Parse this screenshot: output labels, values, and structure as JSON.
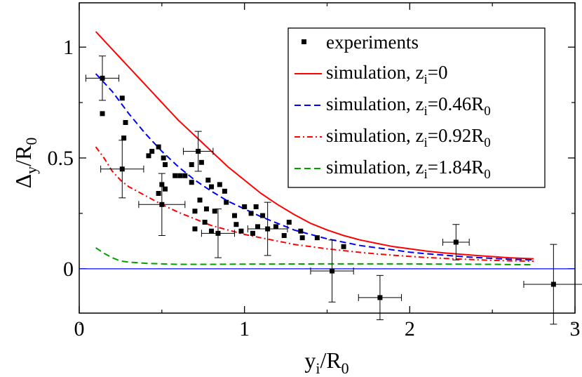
{
  "chart_data": {
    "type": "scatter",
    "title": "",
    "xlabel": {
      "main": "y",
      "sub1": "i",
      "sep": "/R",
      "sub2": "0"
    },
    "ylabel": {
      "main": "Δ",
      "sub1": "y",
      "sep": "/R",
      "sub2": "0"
    },
    "xlim": [
      0,
      3
    ],
    "ylim": [
      -0.2,
      1.2
    ],
    "xticks": [
      {
        "value": 0,
        "label": "0"
      },
      {
        "value": 1,
        "label": "1"
      },
      {
        "value": 2,
        "label": "2"
      },
      {
        "value": 3,
        "label": "3"
      }
    ],
    "yticks": [
      {
        "value": 0,
        "label": "0"
      },
      {
        "value": 0.5,
        "label": "0.5"
      },
      {
        "value": 1,
        "label": "1"
      }
    ],
    "xminor": [
      0.5,
      1.5,
      2.5
    ],
    "yminor": [
      -0.25,
      0.25,
      0.75
    ],
    "baseline": {
      "y": 0,
      "color": "#0000ff"
    },
    "legend_position": "top-right",
    "legend": [
      {
        "id": "exp",
        "marker": "square",
        "color": "#000000",
        "text": "experiments",
        "sub": "",
        "tail": "",
        "tail_sub": ""
      },
      {
        "id": "s0",
        "line": "solid",
        "color": "#ff0000",
        "text": "simulation, z",
        "sub": "i",
        "tail": "=0",
        "tail_sub": ""
      },
      {
        "id": "s1",
        "line": "dashed",
        "color": "#0000ff",
        "text": "simulation, z",
        "sub": "i",
        "tail": "=0.46R",
        "tail_sub": "0"
      },
      {
        "id": "s2",
        "line": "dashdot",
        "color": "#ff0000",
        "text": "simulation, z",
        "sub": "i",
        "tail": "=0.92R",
        "tail_sub": "0"
      },
      {
        "id": "s3",
        "line": "dashed",
        "color": "#00a000",
        "text": "simulation, z",
        "sub": "i",
        "tail": "=1.84R",
        "tail_sub": "0"
      }
    ],
    "series": [
      {
        "name": "simulation, z_i=0",
        "style": "solid",
        "color": "#ff0000",
        "x": [
          0.1,
          0.2,
          0.3,
          0.4,
          0.5,
          0.6,
          0.7,
          0.8,
          0.9,
          1.0,
          1.1,
          1.2,
          1.3,
          1.4,
          1.5,
          1.6,
          1.7,
          1.8,
          1.9,
          2.0,
          2.1,
          2.2,
          2.3,
          2.4,
          2.5,
          2.6,
          2.75
        ],
        "y": [
          1.07,
          0.99,
          0.91,
          0.83,
          0.75,
          0.67,
          0.6,
          0.53,
          0.46,
          0.4,
          0.34,
          0.29,
          0.245,
          0.205,
          0.175,
          0.15,
          0.13,
          0.115,
          0.1,
          0.09,
          0.08,
          0.072,
          0.066,
          0.06,
          0.055,
          0.05,
          0.045
        ]
      },
      {
        "name": "simulation, z_i=0.46R_0",
        "style": "dashed",
        "color": "#0000ff",
        "x": [
          0.1,
          0.2,
          0.3,
          0.4,
          0.5,
          0.6,
          0.7,
          0.8,
          0.9,
          1.0,
          1.1,
          1.2,
          1.3,
          1.4,
          1.5,
          1.6,
          1.7,
          1.8,
          1.9,
          2.0,
          2.1,
          2.2,
          2.3,
          2.4,
          2.5,
          2.6,
          2.75
        ],
        "y": [
          0.88,
          0.8,
          0.7,
          0.61,
          0.53,
          0.46,
          0.4,
          0.35,
          0.305,
          0.27,
          0.235,
          0.205,
          0.175,
          0.155,
          0.135,
          0.12,
          0.105,
          0.095,
          0.085,
          0.075,
          0.068,
          0.062,
          0.056,
          0.051,
          0.047,
          0.043,
          0.04
        ]
      },
      {
        "name": "simulation, z_i=0.92R_0",
        "style": "dashdot",
        "color": "#ff0000",
        "x": [
          0.1,
          0.15,
          0.2,
          0.25,
          0.3,
          0.4,
          0.5,
          0.6,
          0.7,
          0.8,
          0.9,
          1.0,
          1.1,
          1.2,
          1.3,
          1.4,
          1.5,
          1.6,
          1.7,
          1.8,
          1.9,
          2.0,
          2.1,
          2.2,
          2.3,
          2.4,
          2.5,
          2.6,
          2.75
        ],
        "y": [
          0.55,
          0.5,
          0.44,
          0.4,
          0.37,
          0.33,
          0.29,
          0.255,
          0.225,
          0.195,
          0.175,
          0.155,
          0.14,
          0.125,
          0.11,
          0.1,
          0.09,
          0.082,
          0.074,
          0.067,
          0.061,
          0.056,
          0.051,
          0.047,
          0.044,
          0.041,
          0.038,
          0.036,
          0.034
        ]
      },
      {
        "name": "simulation, z_i=1.84R_0",
        "style": "dashed",
        "color": "#00a000",
        "x": [
          0.1,
          0.15,
          0.2,
          0.25,
          0.3,
          0.4,
          0.5,
          0.6,
          0.8,
          1.0,
          1.5,
          2.0,
          2.5,
          2.75
        ],
        "y": [
          0.095,
          0.07,
          0.05,
          0.035,
          0.03,
          0.025,
          0.022,
          0.02,
          0.02,
          0.021,
          0.022,
          0.022,
          0.02,
          0.018
        ]
      }
    ],
    "experiments": [
      {
        "x": 0.14,
        "y": 0.86,
        "xerr": 0.1,
        "yerr": 0.1
      },
      {
        "x": 0.14,
        "y": 0.7
      },
      {
        "x": 0.26,
        "y": 0.77
      },
      {
        "x": 0.28,
        "y": 0.66
      },
      {
        "x": 0.27,
        "y": 0.59
      },
      {
        "x": 0.26,
        "y": 0.45,
        "xerr": 0.13,
        "yerr": 0.13
      },
      {
        "x": 0.42,
        "y": 0.51
      },
      {
        "x": 0.44,
        "y": 0.53
      },
      {
        "x": 0.48,
        "y": 0.55
      },
      {
        "x": 0.51,
        "y": 0.5
      },
      {
        "x": 0.52,
        "y": 0.47
      },
      {
        "x": 0.5,
        "y": 0.38
      },
      {
        "x": 0.52,
        "y": 0.36
      },
      {
        "x": 0.48,
        "y": 0.34
      },
      {
        "x": 0.5,
        "y": 0.29,
        "xerr": 0.14,
        "yerr": 0.14
      },
      {
        "x": 0.58,
        "y": 0.42
      },
      {
        "x": 0.61,
        "y": 0.42
      },
      {
        "x": 0.64,
        "y": 0.42
      },
      {
        "x": 0.68,
        "y": 0.39
      },
      {
        "x": 0.68,
        "y": 0.47
      },
      {
        "x": 0.72,
        "y": 0.53,
        "xerr": 0.09,
        "yerr": 0.09
      },
      {
        "x": 0.74,
        "y": 0.48
      },
      {
        "x": 0.78,
        "y": 0.4
      },
      {
        "x": 0.8,
        "y": 0.37
      },
      {
        "x": 0.85,
        "y": 0.38
      },
      {
        "x": 0.88,
        "y": 0.35
      },
      {
        "x": 0.73,
        "y": 0.31
      },
      {
        "x": 0.7,
        "y": 0.26
      },
      {
        "x": 0.77,
        "y": 0.27
      },
      {
        "x": 0.82,
        "y": 0.26
      },
      {
        "x": 0.76,
        "y": 0.21
      },
      {
        "x": 0.7,
        "y": 0.18
      },
      {
        "x": 0.8,
        "y": 0.17
      },
      {
        "x": 0.84,
        "y": 0.16,
        "xerr": 0.1,
        "yerr": 0.11
      },
      {
        "x": 0.89,
        "y": 0.3
      },
      {
        "x": 0.94,
        "y": 0.24
      },
      {
        "x": 0.95,
        "y": 0.2
      },
      {
        "x": 0.98,
        "y": 0.17
      },
      {
        "x": 1.0,
        "y": 0.28
      },
      {
        "x": 1.04,
        "y": 0.25
      },
      {
        "x": 1.07,
        "y": 0.28
      },
      {
        "x": 1.05,
        "y": 0.16
      },
      {
        "x": 1.08,
        "y": 0.19
      },
      {
        "x": 1.11,
        "y": 0.24
      },
      {
        "x": 1.14,
        "y": 0.18,
        "xerr": 0.12,
        "yerr": 0.12
      },
      {
        "x": 1.19,
        "y": 0.19
      },
      {
        "x": 1.24,
        "y": 0.15
      },
      {
        "x": 1.27,
        "y": 0.21
      },
      {
        "x": 1.34,
        "y": 0.17
      },
      {
        "x": 1.35,
        "y": 0.14
      },
      {
        "x": 1.44,
        "y": 0.14
      },
      {
        "x": 1.6,
        "y": 0.1
      },
      {
        "x": 1.53,
        "y": -0.01,
        "xerr": 0.13,
        "yerr": 0.14
      },
      {
        "x": 1.82,
        "y": -0.13,
        "xerr": 0.13,
        "yerr": 0.1
      },
      {
        "x": 2.28,
        "y": 0.12,
        "xerr": 0.08,
        "yerr": 0.08
      },
      {
        "x": 2.87,
        "y": -0.07,
        "xerr": 0.18,
        "yerr": 0.18
      }
    ]
  }
}
